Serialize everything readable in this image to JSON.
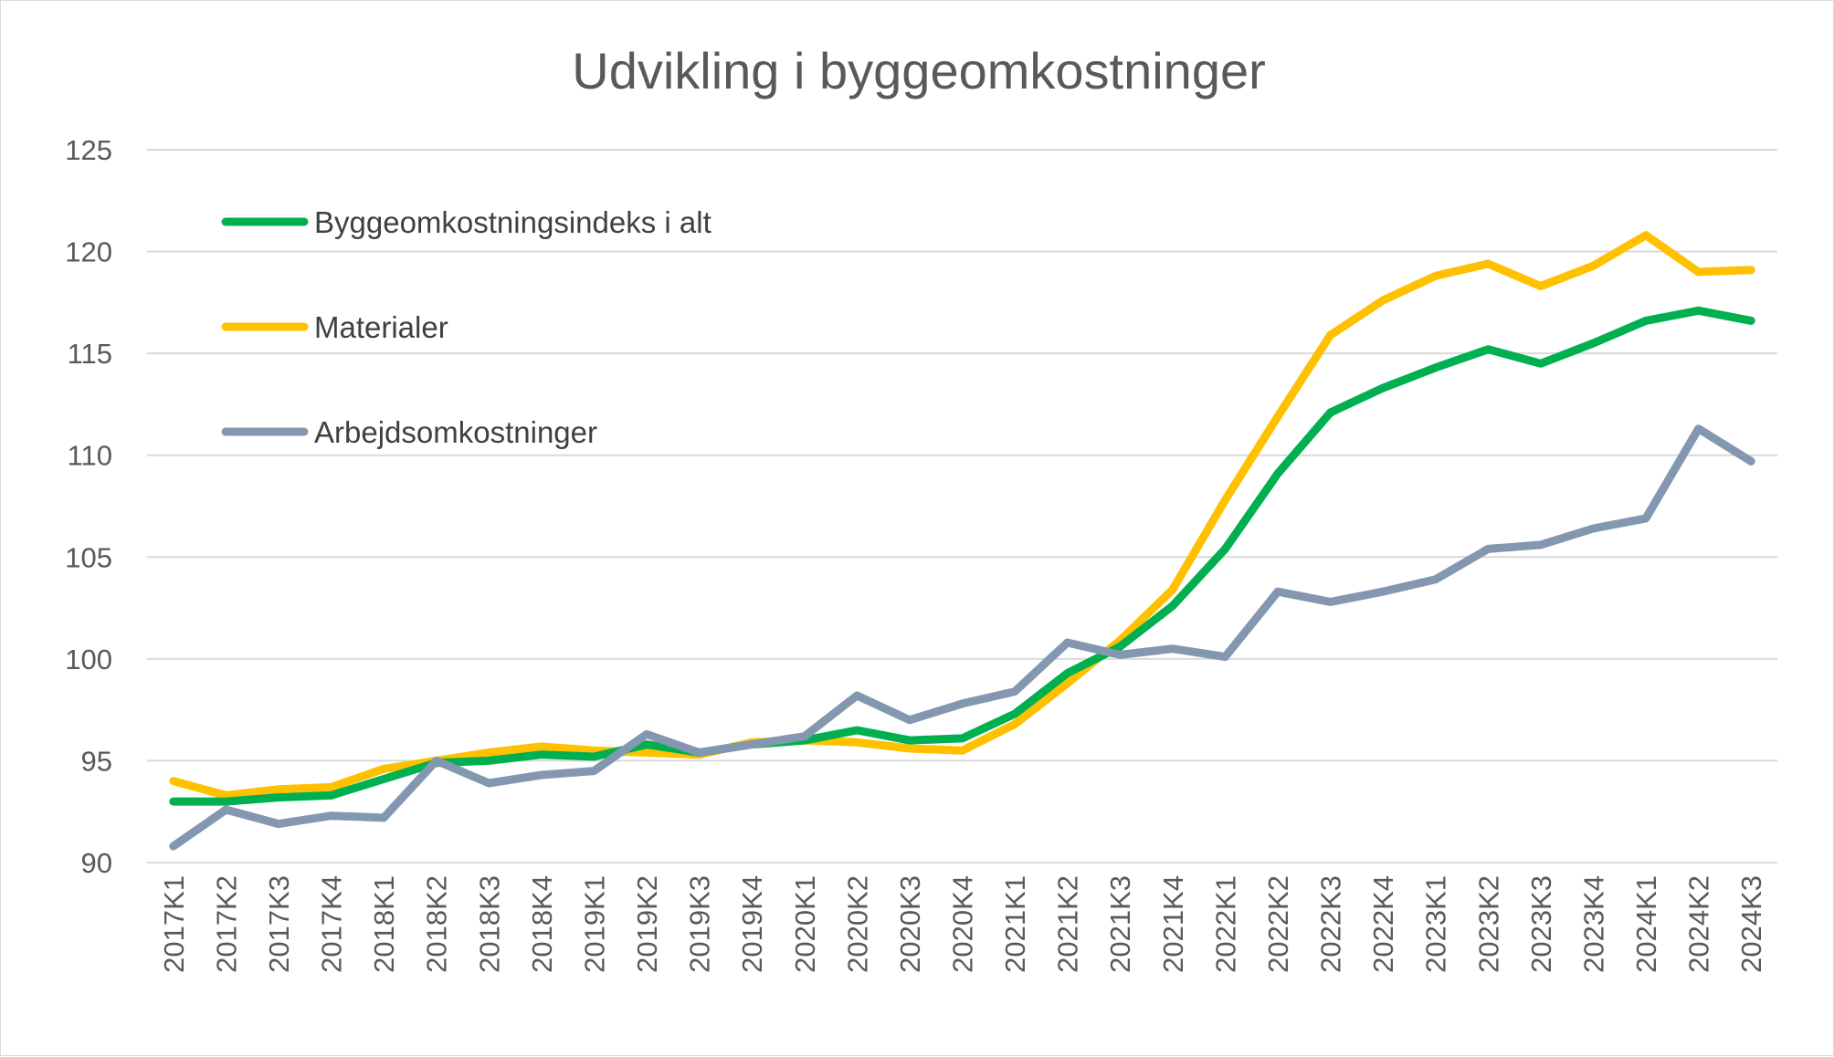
{
  "chart_data": {
    "type": "line",
    "title": "Udvikling i byggeomkostninger",
    "xlabel": "",
    "ylabel": "",
    "ylim": [
      90,
      125
    ],
    "yticks": [
      "90",
      "95",
      "100",
      "105",
      "110",
      "115",
      "120",
      "125"
    ],
    "grid": true,
    "legend_position": "top-left",
    "categories": [
      "2017K1",
      "2017K2",
      "2017K3",
      "2017K4",
      "2018K1",
      "2018K2",
      "2018K3",
      "2018K4",
      "2019K1",
      "2019K2",
      "2019K3",
      "2019K4",
      "2020K1",
      "2020K2",
      "2020K3",
      "2020K4",
      "2021K1",
      "2021K2",
      "2021K3",
      "2021K4",
      "2022K1",
      "2022K2",
      "2022K3",
      "2022K4",
      "2023K1",
      "2023K2",
      "2023K3",
      "2023K4",
      "2024K1",
      "2024K2",
      "2024K3"
    ],
    "series": [
      {
        "name": "Byggeomkostningsindeks i alt",
        "color": "#00b050",
        "values": [
          93.0,
          93.0,
          93.2,
          93.3,
          94.1,
          94.9,
          95.0,
          95.3,
          95.2,
          95.8,
          95.4,
          95.8,
          96.0,
          96.5,
          96.0,
          96.1,
          97.3,
          99.3,
          100.6,
          102.6,
          105.4,
          109.1,
          112.1,
          113.3,
          114.3,
          115.2,
          114.5,
          115.5,
          116.6,
          117.1,
          116.6
        ]
      },
      {
        "name": "Materialer",
        "color": "#ffc000",
        "values": [
          94.0,
          93.3,
          93.6,
          93.7,
          94.6,
          95.0,
          95.4,
          95.7,
          95.5,
          95.4,
          95.3,
          95.9,
          96.0,
          95.9,
          95.6,
          95.5,
          96.8,
          98.8,
          100.9,
          103.4,
          107.8,
          111.9,
          115.9,
          117.6,
          118.8,
          119.4,
          118.3,
          119.3,
          120.8,
          119.0,
          119.1
        ]
      },
      {
        "name": "Arbejdsomkostninger",
        "color": "#8497b0",
        "values": [
          90.8,
          92.6,
          91.9,
          92.3,
          92.2,
          95.0,
          93.9,
          94.3,
          94.5,
          96.3,
          95.4,
          95.8,
          96.2,
          98.2,
          97.0,
          97.8,
          98.4,
          100.8,
          100.2,
          100.5,
          100.1,
          103.3,
          102.8,
          103.3,
          103.9,
          105.4,
          105.6,
          106.4,
          106.9,
          111.3,
          109.7
        ]
      }
    ]
  }
}
